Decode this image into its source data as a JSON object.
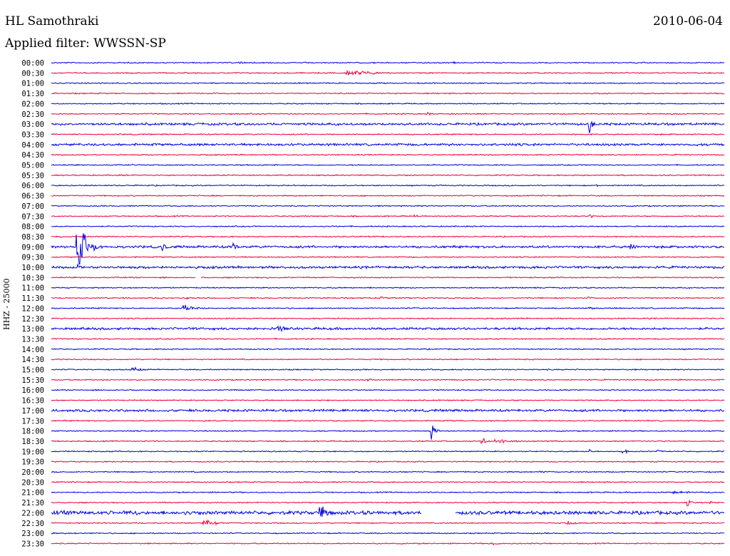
{
  "header": {
    "station": "HL Samothraki",
    "date": "2010-06-04",
    "filter": "Applied filter: WWSSN-SP"
  },
  "channel_label": "HHZ - 25000",
  "colors": {
    "odd": "#0000e0",
    "even": "#f0003c",
    "text": "#000000"
  },
  "chart_data": {
    "type": "line",
    "title": "HL Samothraki",
    "xlabel": "",
    "ylabel": "HHZ - 25000",
    "series_interval_minutes": 30,
    "colors_alternate": [
      "blue",
      "red"
    ],
    "rows": [
      {
        "label": "00:00",
        "noise": 1,
        "events": [
          {
            "x": 0.28,
            "amp": 2,
            "w": 0.01
          },
          {
            "x": 0.6,
            "amp": 2,
            "w": 0.005
          },
          {
            "x": 0.88,
            "amp": 2,
            "w": 0.005
          }
        ]
      },
      {
        "label": "00:30",
        "noise": 1,
        "events": [
          {
            "x": 0.45,
            "amp": 4,
            "w": 0.04
          }
        ]
      },
      {
        "label": "01:00",
        "noise": 1,
        "events": [
          {
            "x": 0.6,
            "amp": 1,
            "w": 0.01
          }
        ]
      },
      {
        "label": "01:30",
        "noise": 1,
        "events": [
          {
            "x": 0.72,
            "amp": 1,
            "w": 0.01
          },
          {
            "x": 0.83,
            "amp": 1,
            "w": 0.03
          }
        ]
      },
      {
        "label": "02:00",
        "noise": 1,
        "events": []
      },
      {
        "label": "02:30",
        "noise": 1,
        "events": [
          {
            "x": 0.56,
            "amp": 5,
            "w": 0.004
          },
          {
            "x": 0.92,
            "amp": 1,
            "w": 0.03
          }
        ]
      },
      {
        "label": "03:00",
        "noise": 2,
        "events": [
          {
            "x": 0.8,
            "amp": 14,
            "w": 0.006
          },
          {
            "x": 0.56,
            "amp": 3,
            "w": 0.006
          }
        ]
      },
      {
        "label": "03:30",
        "noise": 1,
        "events": []
      },
      {
        "label": "04:00",
        "noise": 2,
        "events": []
      },
      {
        "label": "04:30",
        "noise": 1,
        "events": []
      },
      {
        "label": "05:00",
        "noise": 1,
        "events": [
          {
            "x": 0.12,
            "amp": 2,
            "w": 0.003
          }
        ]
      },
      {
        "label": "05:30",
        "noise": 1,
        "events": []
      },
      {
        "label": "06:00",
        "noise": 1,
        "events": [
          {
            "x": 0.81,
            "amp": 3,
            "w": 0.003
          }
        ]
      },
      {
        "label": "06:30",
        "noise": 1,
        "events": []
      },
      {
        "label": "07:00",
        "noise": 1,
        "events": []
      },
      {
        "label": "07:30",
        "noise": 1,
        "events": [
          {
            "x": 0.54,
            "amp": 3,
            "w": 0.006
          },
          {
            "x": 0.8,
            "amp": 5,
            "w": 0.004
          }
        ]
      },
      {
        "label": "08:00",
        "noise": 1,
        "events": []
      },
      {
        "label": "08:30",
        "noise": 1,
        "events": []
      },
      {
        "label": "09:00",
        "noise": 2,
        "events": [
          {
            "x": 0.04,
            "amp": 46,
            "w": 0.012
          },
          {
            "x": 0.165,
            "amp": 8,
            "w": 0.006
          },
          {
            "x": 0.27,
            "amp": 7,
            "w": 0.006
          },
          {
            "x": 0.86,
            "amp": 14,
            "w": 0.006
          }
        ]
      },
      {
        "label": "09:30",
        "noise": 1,
        "events": []
      },
      {
        "label": "10:00",
        "noise": 2,
        "events": [
          {
            "x": 0.04,
            "amp": 10,
            "w": 0.003
          }
        ]
      },
      {
        "label": "10:30",
        "noise": 1,
        "events": [],
        "gap": [
          0.215,
          0.222
        ]
      },
      {
        "label": "11:00",
        "noise": 1,
        "events": []
      },
      {
        "label": "11:30",
        "noise": 1,
        "events": [
          {
            "x": 0.2,
            "amp": 2,
            "w": 0.01
          },
          {
            "x": 0.49,
            "amp": 2,
            "w": 0.02
          },
          {
            "x": 0.8,
            "amp": 2,
            "w": 0.01
          }
        ]
      },
      {
        "label": "12:00",
        "noise": 1,
        "events": [
          {
            "x": 0.2,
            "amp": 6,
            "w": 0.015
          },
          {
            "x": 0.8,
            "amp": 2,
            "w": 0.015
          }
        ]
      },
      {
        "label": "12:30",
        "noise": 1,
        "events": []
      },
      {
        "label": "13:00",
        "noise": 2,
        "events": [
          {
            "x": 0.34,
            "amp": 4,
            "w": 0.015
          }
        ]
      },
      {
        "label": "13:30",
        "noise": 1,
        "events": []
      },
      {
        "label": "14:00",
        "noise": 1,
        "events": []
      },
      {
        "label": "14:30",
        "noise": 1,
        "events": []
      },
      {
        "label": "15:00",
        "noise": 1,
        "events": [
          {
            "x": 0.12,
            "amp": 5,
            "w": 0.012
          },
          {
            "x": 0.6,
            "amp": 1,
            "w": 0.005
          }
        ]
      },
      {
        "label": "15:30",
        "noise": 1,
        "events": [
          {
            "x": 0.47,
            "amp": 3,
            "w": 0.008
          }
        ]
      },
      {
        "label": "16:00",
        "noise": 1,
        "events": []
      },
      {
        "label": "16:30",
        "noise": 1,
        "events": []
      },
      {
        "label": "17:00",
        "noise": 2,
        "events": []
      },
      {
        "label": "17:30",
        "noise": 1,
        "events": []
      },
      {
        "label": "18:00",
        "noise": 1,
        "events": [
          {
            "x": 0.565,
            "amp": 14,
            "w": 0.006
          }
        ]
      },
      {
        "label": "18:30",
        "noise": 1,
        "events": [
          {
            "x": 0.64,
            "amp": 8,
            "w": 0.006
          },
          {
            "x": 0.67,
            "amp": 3,
            "w": 0.04
          }
        ]
      },
      {
        "label": "19:00",
        "noise": 1,
        "events": [
          {
            "x": 0.8,
            "amp": 5,
            "w": 0.004
          },
          {
            "x": 0.85,
            "amp": 5,
            "w": 0.006
          },
          {
            "x": 0.9,
            "amp": 6,
            "w": 0.004
          }
        ]
      },
      {
        "label": "19:30",
        "noise": 1,
        "events": []
      },
      {
        "label": "20:00",
        "noise": 1,
        "events": [
          {
            "x": 0.73,
            "amp": 2,
            "w": 0.02
          }
        ]
      },
      {
        "label": "20:30",
        "noise": 1,
        "events": []
      },
      {
        "label": "21:00",
        "noise": 1,
        "events": [
          {
            "x": 0.93,
            "amp": 2,
            "w": 0.03
          }
        ]
      },
      {
        "label": "21:30",
        "noise": 1,
        "events": [
          {
            "x": 0.945,
            "amp": 8,
            "w": 0.006
          },
          {
            "x": 0.98,
            "amp": 4,
            "w": 0.005
          }
        ]
      },
      {
        "label": "22:00",
        "noise": 3,
        "events": [
          {
            "x": 0.02,
            "amp": 4,
            "w": 0.04
          },
          {
            "x": 0.4,
            "amp": 14,
            "w": 0.01
          },
          {
            "x": 0.47,
            "amp": 4,
            "w": 0.005
          },
          {
            "x": 0.2,
            "amp": 4,
            "w": 0.005
          },
          {
            "x": 0.12,
            "amp": 4,
            "w": 0.005
          }
        ],
        "gap": [
          0.55,
          0.6
        ]
      },
      {
        "label": "22:30",
        "noise": 1,
        "events": [
          {
            "x": 0.23,
            "amp": 5,
            "w": 0.02
          },
          {
            "x": 0.77,
            "amp": 3,
            "w": 0.02
          }
        ]
      },
      {
        "label": "23:00",
        "noise": 1,
        "events": []
      },
      {
        "label": "23:30",
        "noise": 1,
        "events": [
          {
            "x": 0.66,
            "amp": 2,
            "w": 0.02
          }
        ]
      }
    ]
  }
}
